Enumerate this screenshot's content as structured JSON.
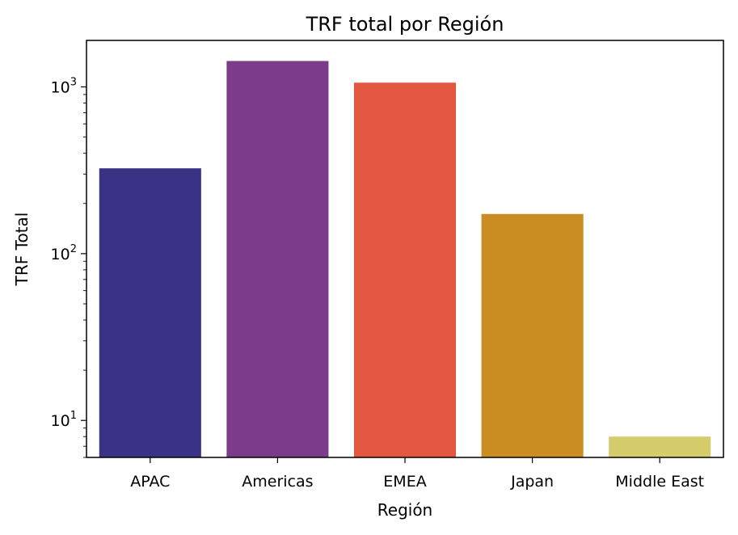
{
  "chart_data": {
    "type": "bar",
    "title": "TRF total por Región",
    "xlabel": "Región",
    "ylabel": "TRF Total",
    "yscale": "log",
    "ylim": [
      6,
      1900
    ],
    "categories": [
      "APAC",
      "Americas",
      "EMEA",
      "Japan",
      "Middle East"
    ],
    "values": [
      325,
      1430,
      1060,
      173,
      8
    ],
    "colors": [
      "#3a3285",
      "#7b3d8a",
      "#e35640",
      "#c98d22",
      "#d5cd6c"
    ],
    "y_major_ticks": [
      {
        "value": 10,
        "base": "10",
        "exp": "1"
      },
      {
        "value": 100,
        "base": "10",
        "exp": "2"
      },
      {
        "value": 1000,
        "base": "10",
        "exp": "3"
      }
    ],
    "grid": false,
    "legend": "none"
  }
}
